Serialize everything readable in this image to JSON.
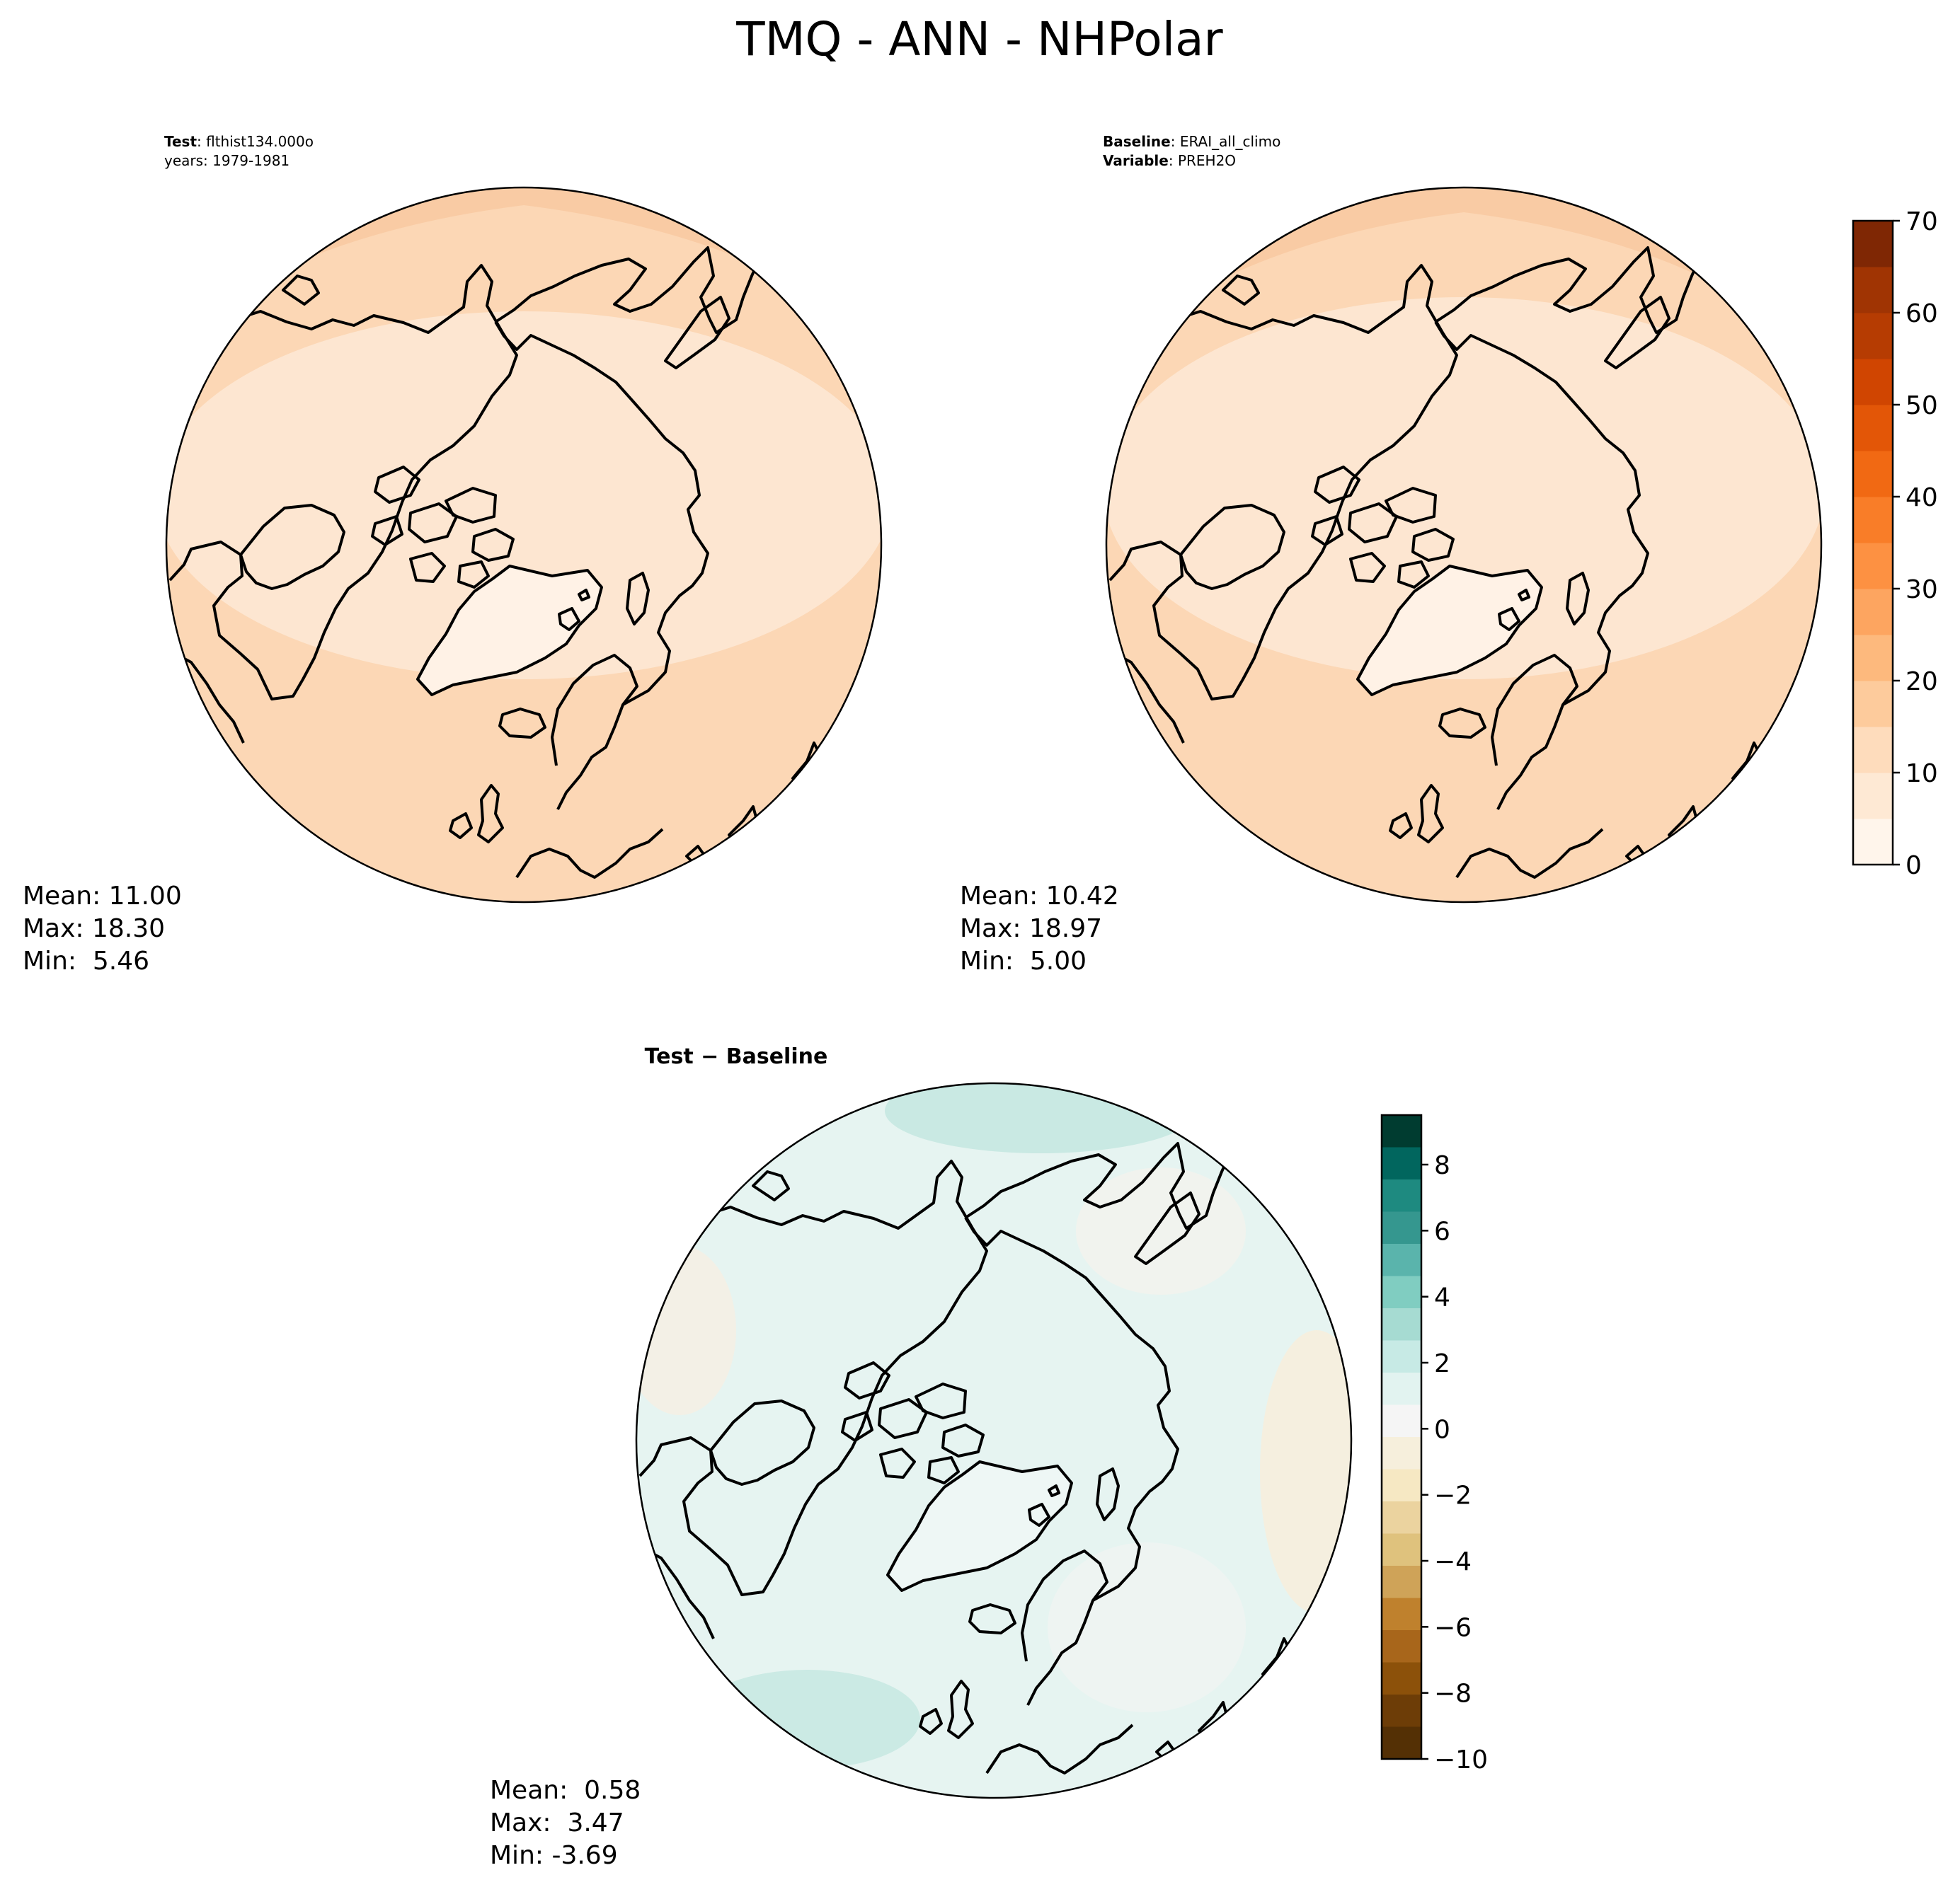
{
  "title": "TMQ - ANN - NHPolar",
  "panels": [
    {
      "id": "test",
      "header_line1_bold": "Test",
      "header_line1_rest": ": flthist134.000o",
      "header_line2_bold": "",
      "header_line2_rest": "years: 1979-1981",
      "stats": [
        "Mean: 11.00",
        "Max: 18.30",
        "Min:  5.46"
      ]
    },
    {
      "id": "baseline",
      "header_line1_bold": "Baseline",
      "header_line1_rest": ": ERAI_all_climo",
      "header_line2_bold": "Variable",
      "header_line2_rest": ": PREH2O",
      "stats": [
        "Mean: 10.42",
        "Max: 18.97",
        "Min:  5.00"
      ]
    },
    {
      "id": "diff",
      "header_line1_bold": "Test − Baseline",
      "header_line1_rest": "",
      "header_line2_bold": "",
      "header_line2_rest": "",
      "stats": [
        "Mean:  0.58",
        "Max:  3.47",
        "Min: -3.69"
      ]
    }
  ],
  "colorbars": {
    "main": {
      "ticks": [
        "0",
        "10",
        "20",
        "30",
        "40",
        "50",
        "60",
        "70"
      ],
      "min": 0,
      "max": 70,
      "colors": [
        "#fff5eb",
        "#fee9d4",
        "#fedcbc",
        "#fdcb9c",
        "#fdb97d",
        "#fda560",
        "#fd9142",
        "#f97d28",
        "#f16913",
        "#e35607",
        "#d04501",
        "#b63c02",
        "#a03403",
        "#7f2704"
      ]
    },
    "diff": {
      "ticks": [
        "8",
        "6",
        "4",
        "2",
        "0",
        "−2",
        "−4",
        "−6",
        "−8",
        "−10"
      ],
      "tick_values": [
        8,
        6,
        4,
        2,
        0,
        -2,
        -4,
        -6,
        -8,
        -10
      ],
      "min": -10,
      "max": 9.5,
      "colors": [
        "#003c30",
        "#01665e",
        "#1e8a80",
        "#35978f",
        "#5ab4ac",
        "#80cdc1",
        "#a6dbd2",
        "#c7eae5",
        "#e2f3f0",
        "#f5f5f5",
        "#f6efdc",
        "#f6e8c3",
        "#ebd39f",
        "#dfc27d",
        "#cfa358",
        "#bf812d",
        "#a8661b",
        "#8c510a",
        "#6d3d07",
        "#543005"
      ]
    }
  },
  "colors": {
    "map_light": "#fde6d1",
    "map_medium": "#fcd7b5",
    "map_dark": "#f9bf8e",
    "greenland_fill": "#fff2e6",
    "diff_base": "#e6f4f1",
    "coastline": "#000000"
  }
}
